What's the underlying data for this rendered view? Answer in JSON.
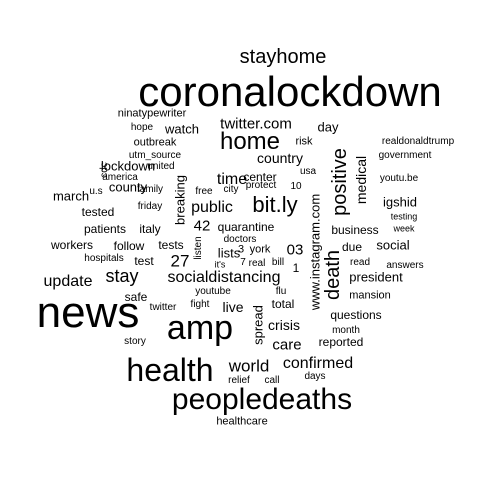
{
  "cloud": {
    "text_color": "#000000",
    "background": "#ffffff",
    "words": [
      {
        "text": "coronalockdown",
        "rank": 1
      },
      {
        "text": "news",
        "rank": 2
      },
      {
        "text": "amp",
        "rank": 3
      },
      {
        "text": "peopledeaths",
        "rank": 4
      },
      {
        "text": "health",
        "rank": 5
      },
      {
        "text": "home",
        "rank": 6
      },
      {
        "text": "bit.ly",
        "rank": 7
      },
      {
        "text": "positive",
        "rank": 8
      },
      {
        "text": "death",
        "rank": 9
      },
      {
        "text": "stay",
        "rank": 10
      },
      {
        "text": "stayhome",
        "rank": 11
      },
      {
        "text": "world",
        "rank": 12
      },
      {
        "text": "socialdistancing",
        "rank": 13
      },
      {
        "text": "confirmed",
        "rank": 14
      },
      {
        "text": "update",
        "rank": 15
      },
      {
        "text": "twitter.com",
        "rank": 16
      },
      {
        "text": "time",
        "rank": 17
      },
      {
        "text": "public",
        "rank": 18
      },
      {
        "text": "country",
        "rank": 19
      },
      {
        "text": "care",
        "rank": 20
      },
      {
        "text": "www.instagram.com",
        "rank": 21
      },
      {
        "text": "medical",
        "rank": 22
      },
      {
        "text": "live",
        "rank": 23
      },
      {
        "text": "27",
        "rank": 24
      },
      {
        "text": "42",
        "rank": 25
      },
      {
        "text": "03",
        "rank": 26
      },
      {
        "text": "crisis",
        "rank": 27
      },
      {
        "text": "president",
        "rank": 28
      },
      {
        "text": "spread",
        "rank": 29
      },
      {
        "text": "breaking",
        "rank": 30
      },
      {
        "text": "day",
        "rank": 31
      },
      {
        "text": "march",
        "rank": 32
      },
      {
        "text": "lockdown",
        "rank": 33
      },
      {
        "text": "county",
        "rank": 34
      },
      {
        "text": "watch",
        "rank": 35
      },
      {
        "text": "workers",
        "rank": 36
      },
      {
        "text": "business",
        "rank": 37
      },
      {
        "text": "social",
        "rank": 38
      },
      {
        "text": "lists",
        "rank": 39
      },
      {
        "text": "igshid",
        "rank": 40
      },
      {
        "text": "patients",
        "rank": 41
      },
      {
        "text": "tested",
        "rank": 42
      },
      {
        "text": "safe",
        "rank": 43
      },
      {
        "text": "total",
        "rank": 44
      },
      {
        "text": "questions",
        "rank": 45
      },
      {
        "text": "reported",
        "rank": 46
      },
      {
        "text": "quarantine",
        "rank": 47
      },
      {
        "text": "test",
        "rank": 48
      },
      {
        "text": "tests",
        "rank": 49
      },
      {
        "text": "italy",
        "rank": 50
      },
      {
        "text": "follow",
        "rank": 51
      },
      {
        "text": "due",
        "rank": 52
      },
      {
        "text": "center",
        "rank": 53
      },
      {
        "text": "mansion",
        "rank": 54
      },
      {
        "text": "1",
        "rank": 55
      },
      {
        "text": "3",
        "rank": 56
      },
      {
        "text": "york",
        "rank": 57
      },
      {
        "text": "government",
        "rank": 58
      },
      {
        "text": "realdonaldtrump",
        "rank": 59
      },
      {
        "text": "ninatypewriter",
        "rank": 60
      },
      {
        "text": "hope",
        "rank": 61
      },
      {
        "text": "outbreak",
        "rank": 62
      },
      {
        "text": "risk",
        "rank": 63
      },
      {
        "text": "united",
        "rank": 64
      },
      {
        "text": "utm_source",
        "rank": 65
      },
      {
        "text": "america",
        "rank": 66
      },
      {
        "text": "family",
        "rank": 67
      },
      {
        "text": "u.s",
        "rank": 68
      },
      {
        "text": "cdc",
        "rank": 69
      },
      {
        "text": "free",
        "rank": 70
      },
      {
        "text": "city",
        "rank": 71
      },
      {
        "text": "protect",
        "rank": 72
      },
      {
        "text": "10",
        "rank": 73
      },
      {
        "text": "usa",
        "rank": 74
      },
      {
        "text": "youtu.be",
        "rank": 75
      },
      {
        "text": "testing",
        "rank": 76
      },
      {
        "text": "week",
        "rank": 77
      },
      {
        "text": "friday",
        "rank": 78
      },
      {
        "text": "doctors",
        "rank": 79
      },
      {
        "text": "listen",
        "rank": 80
      },
      {
        "text": "hospitals",
        "rank": 81
      },
      {
        "text": "it's",
        "rank": 82
      },
      {
        "text": "7",
        "rank": 83
      },
      {
        "text": "real",
        "rank": 84
      },
      {
        "text": "bill",
        "rank": 85
      },
      {
        "text": "read",
        "rank": 86
      },
      {
        "text": "answers",
        "rank": 87
      },
      {
        "text": "youtube",
        "rank": 88
      },
      {
        "text": "twitter",
        "rank": 89
      },
      {
        "text": "fight",
        "rank": 90
      },
      {
        "text": "flu",
        "rank": 91
      },
      {
        "text": "month",
        "rank": 92
      },
      {
        "text": "story",
        "rank": 93
      },
      {
        "text": "relief",
        "rank": 94
      },
      {
        "text": "call",
        "rank": 95
      },
      {
        "text": "days",
        "rank": 96
      },
      {
        "text": "healthcare",
        "rank": 97
      }
    ]
  }
}
